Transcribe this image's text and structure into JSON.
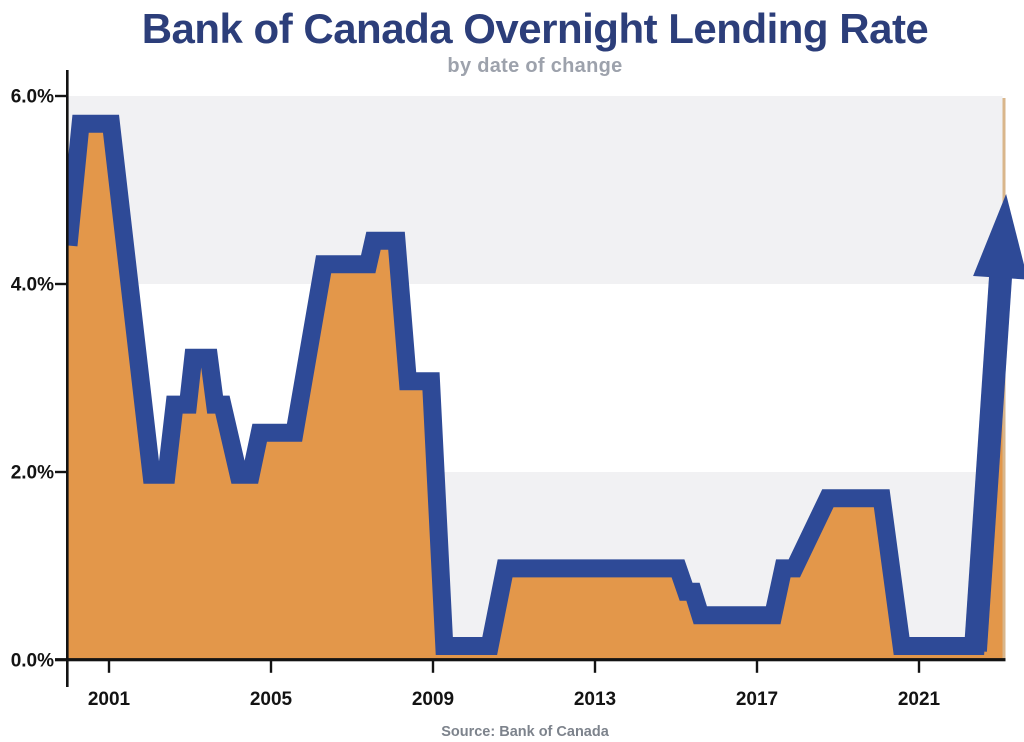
{
  "title": "Bank of Canada Overnight Lending Rate",
  "subtitle": "by date of change",
  "source": "Source: Bank of Canada",
  "colors": {
    "title": "#2c3e7a",
    "subtitle": "#9da2ac",
    "source": "#7d838c",
    "line": "#2e4a97",
    "fill": "#e3974a",
    "band": "#f1f1f3",
    "axis": "#131313",
    "plot_edge": "#d9b68b"
  },
  "chart_data": {
    "type": "area",
    "title": "Bank of Canada Overnight Lending Rate",
    "subtitle": "by date of change",
    "xlabel": "",
    "ylabel": "",
    "ylim": [
      0,
      6
    ],
    "xlim": [
      2000,
      2023.1
    ],
    "grid": "alternating horizontal bands (0-2% and 4-6% shaded)",
    "legend": "none",
    "y_ticks": [
      {
        "label": "0.0%",
        "value": 0
      },
      {
        "label": "2.0%",
        "value": 2
      },
      {
        "label": "4.0%",
        "value": 4
      },
      {
        "label": "6.0%",
        "value": 6
      }
    ],
    "x_ticks": [
      2001,
      2005,
      2009,
      2013,
      2017,
      2021
    ],
    "series": [
      {
        "name": "Bank of Canada overnight lending rate",
        "points": [
          [
            2000.0,
            4.45
          ],
          [
            2000.3,
            5.75
          ],
          [
            2001.05,
            5.75
          ],
          [
            2002.05,
            2.0
          ],
          [
            2002.42,
            2.0
          ],
          [
            2002.62,
            2.75
          ],
          [
            2002.95,
            2.75
          ],
          [
            2003.08,
            3.25
          ],
          [
            2003.47,
            3.25
          ],
          [
            2003.62,
            2.75
          ],
          [
            2003.8,
            2.75
          ],
          [
            2004.2,
            2.0
          ],
          [
            2004.5,
            2.0
          ],
          [
            2004.72,
            2.45
          ],
          [
            2005.58,
            2.45
          ],
          [
            2006.3,
            4.25
          ],
          [
            2007.4,
            4.25
          ],
          [
            2007.53,
            4.5
          ],
          [
            2008.1,
            4.5
          ],
          [
            2008.38,
            3.0
          ],
          [
            2008.95,
            3.0
          ],
          [
            2009.28,
            0.25
          ],
          [
            2010.4,
            0.25
          ],
          [
            2010.78,
            1.0
          ],
          [
            2015.05,
            1.0
          ],
          [
            2015.25,
            0.75
          ],
          [
            2015.42,
            0.75
          ],
          [
            2015.6,
            0.5
          ],
          [
            2017.4,
            0.5
          ],
          [
            2017.65,
            1.0
          ],
          [
            2017.92,
            1.0
          ],
          [
            2018.75,
            1.75
          ],
          [
            2020.08,
            1.75
          ],
          [
            2020.57,
            0.25
          ],
          [
            2022.4,
            0.25
          ],
          [
            2023.15,
            5.0
          ]
        ]
      }
    ],
    "annotation_arrow": {
      "meaning": "rate rising steeply through 2022-2023"
    }
  }
}
